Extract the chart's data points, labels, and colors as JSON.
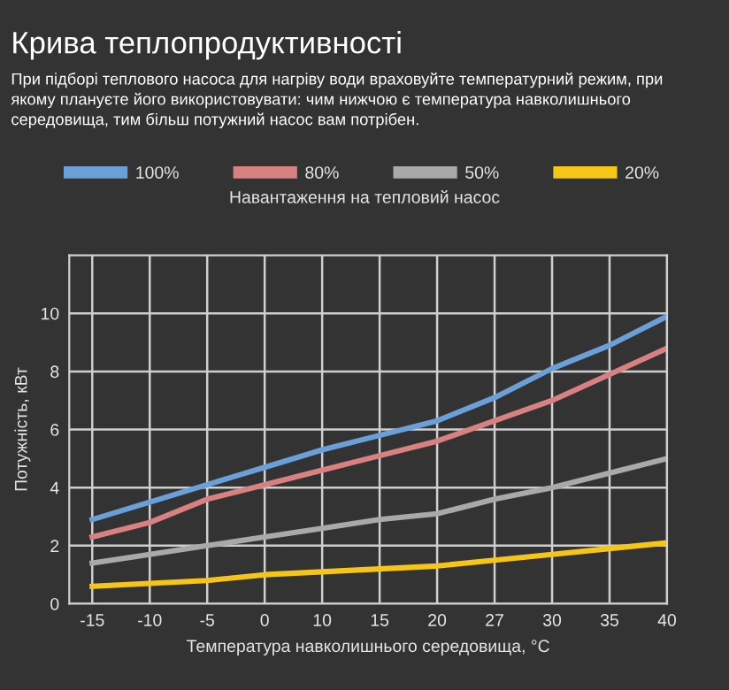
{
  "chart_data": {
    "type": "line",
    "title": "Крива теплопродуктивності",
    "subtitle": "При підборі теплового насоса для нагріву води враховуйте температурний режим, при\nякому плануєте його використовувати: чим нижчою є температура навколишнього\nсередовища, тим більш потужний насос вам потрібен.",
    "legend_title": "Навантаження на тепловий насос",
    "xlabel": "Температура навколишнього середовища, °C",
    "ylabel": "Потужність, кВт",
    "categories": [
      "-15",
      "-10",
      "-5",
      "0",
      "10",
      "15",
      "20",
      "27",
      "30",
      "35",
      "40"
    ],
    "series": [
      {
        "name": "100%",
        "color": "#6a9fd8",
        "values": [
          2.9,
          3.5,
          4.1,
          4.7,
          5.3,
          5.8,
          6.3,
          7.1,
          8.1,
          8.9,
          9.9
        ]
      },
      {
        "name": "80%",
        "color": "#d98080",
        "values": [
          2.3,
          2.8,
          3.6,
          4.1,
          4.6,
          5.1,
          5.6,
          6.3,
          7.0,
          7.9,
          8.8
        ]
      },
      {
        "name": "50%",
        "color": "#a9a9a9",
        "values": [
          1.4,
          1.7,
          2.0,
          2.3,
          2.6,
          2.9,
          3.1,
          3.6,
          4.0,
          4.5,
          5.0
        ]
      },
      {
        "name": "20%",
        "color": "#f5c518",
        "values": [
          0.6,
          0.7,
          0.8,
          1.0,
          1.1,
          1.2,
          1.3,
          1.5,
          1.7,
          1.9,
          2.1
        ]
      }
    ],
    "ylim": [
      0,
      12
    ],
    "yticks": [
      0,
      2,
      4,
      6,
      8,
      10
    ],
    "grid": true,
    "legend": "top",
    "marker": "none",
    "line_style": "solid"
  }
}
